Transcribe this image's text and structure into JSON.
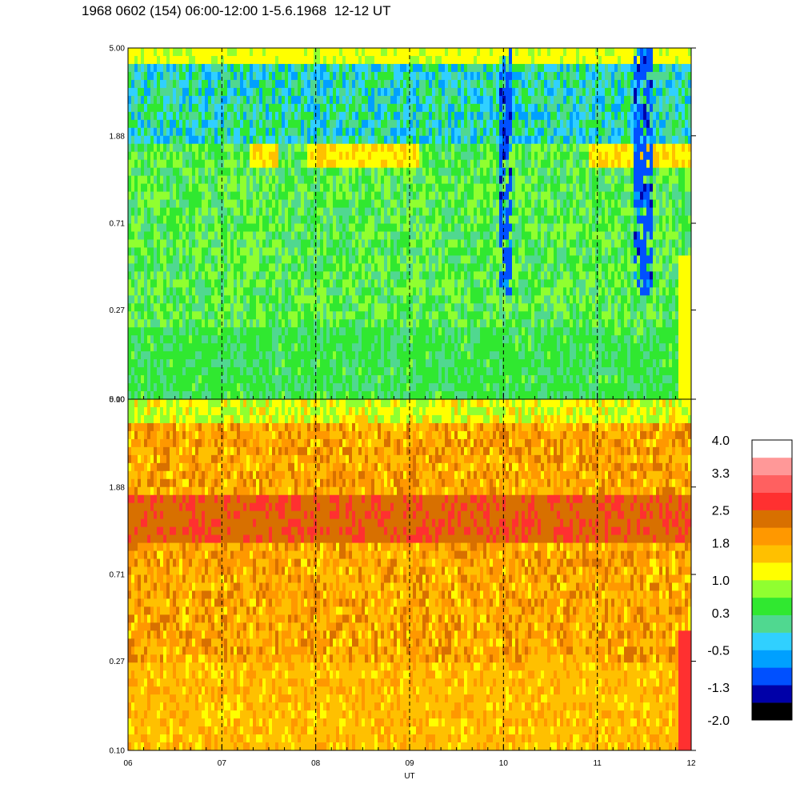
{
  "title": "1968 0602 (154) 06:00-12:00 1-5.6.1968  12-12 UT",
  "colors": [
    "#000000",
    "#0000a8",
    "#0050ff",
    "#00a0ff",
    "#30d0ff",
    "#50d890",
    "#30e830",
    "#90ff30",
    "#ffff00",
    "#ffc000",
    "#ff9800",
    "#d87000",
    "#ff3030",
    "#ff6060",
    "#ff9898",
    "#ffffff"
  ],
  "chart_data": [
    {
      "type": "heatmap",
      "panel": "top",
      "xlabel": "",
      "ylabel": "",
      "x_tick_labels": [],
      "x_range": [
        6,
        12
      ],
      "y_tick_labels": [
        "5.00",
        "1.88",
        "0.71",
        "0.27",
        "0.10"
      ],
      "y_scale": "log",
      "y_range": [
        0.1,
        5.0
      ],
      "dashed_vertical_lines_at": [
        7,
        8,
        9,
        10,
        11
      ],
      "background_level_range": [
        0.0,
        1.2
      ],
      "features": [
        "yellow band near 1.9 across 08-09 and 11-12",
        "dark blue streaks near 10 and 11.5"
      ]
    },
    {
      "type": "heatmap",
      "panel": "bottom",
      "xlabel": "UT",
      "ylabel": "",
      "x_tick_labels": [
        "06",
        "07",
        "08",
        "09",
        "10",
        "11",
        "12"
      ],
      "x_range": [
        6,
        12
      ],
      "y_tick_labels": [
        "5.00",
        "1.88",
        "0.71",
        "0.27",
        "0.10"
      ],
      "y_scale": "log",
      "y_range": [
        0.1,
        5.0
      ],
      "dashed_vertical_lines_at": [
        7,
        8,
        9,
        10,
        11
      ],
      "background_level_range": [
        1.2,
        2.2
      ],
      "features": [
        "dark orange band near 1.6 across full range",
        "red streak near 11.9 at low values"
      ]
    }
  ],
  "colorbar": {
    "labels": [
      "4.0",
      "3.3",
      "2.5",
      "1.8",
      "1.0",
      "0.3",
      "-0.5",
      "-1.3",
      "-2.0"
    ],
    "min": -2.0,
    "max": 4.0,
    "steps": 16
  }
}
